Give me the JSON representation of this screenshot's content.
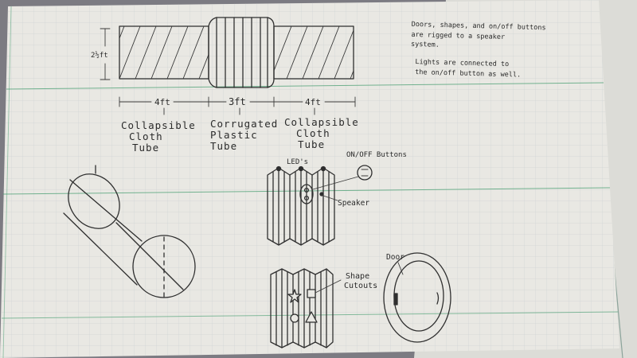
{
  "note": {
    "line1": "Doors, shapes, and on/off buttons",
    "line2": "are rigged to a speaker",
    "line3": "system.",
    "line4": "Lights are connected to",
    "line5": "the on/off button as well."
  },
  "dimensions": {
    "height": "2½ft",
    "left_length": "4ft",
    "middle_length": "3ft",
    "right_length": "4ft"
  },
  "parts": {
    "left_tube": [
      "Collapsible",
      "Cloth",
      "Tube"
    ],
    "middle_tube": [
      "Corrugated",
      "Plastic",
      "Tube"
    ],
    "right_tube": [
      "Collapsible",
      "Cloth",
      "Tube"
    ]
  },
  "callouts": {
    "leds": "LED's",
    "buttons": "ON/OFF Buttons",
    "speaker": "Speaker",
    "shape_cutouts": [
      "Shape",
      "Cutouts"
    ],
    "door": "Door"
  },
  "colors": {
    "paper": "#e9e8e3",
    "grid": "#cfd5d3",
    "ink": "#2f2f2f",
    "accent_line": "#3f9a6b",
    "background": "#7c7b82"
  }
}
